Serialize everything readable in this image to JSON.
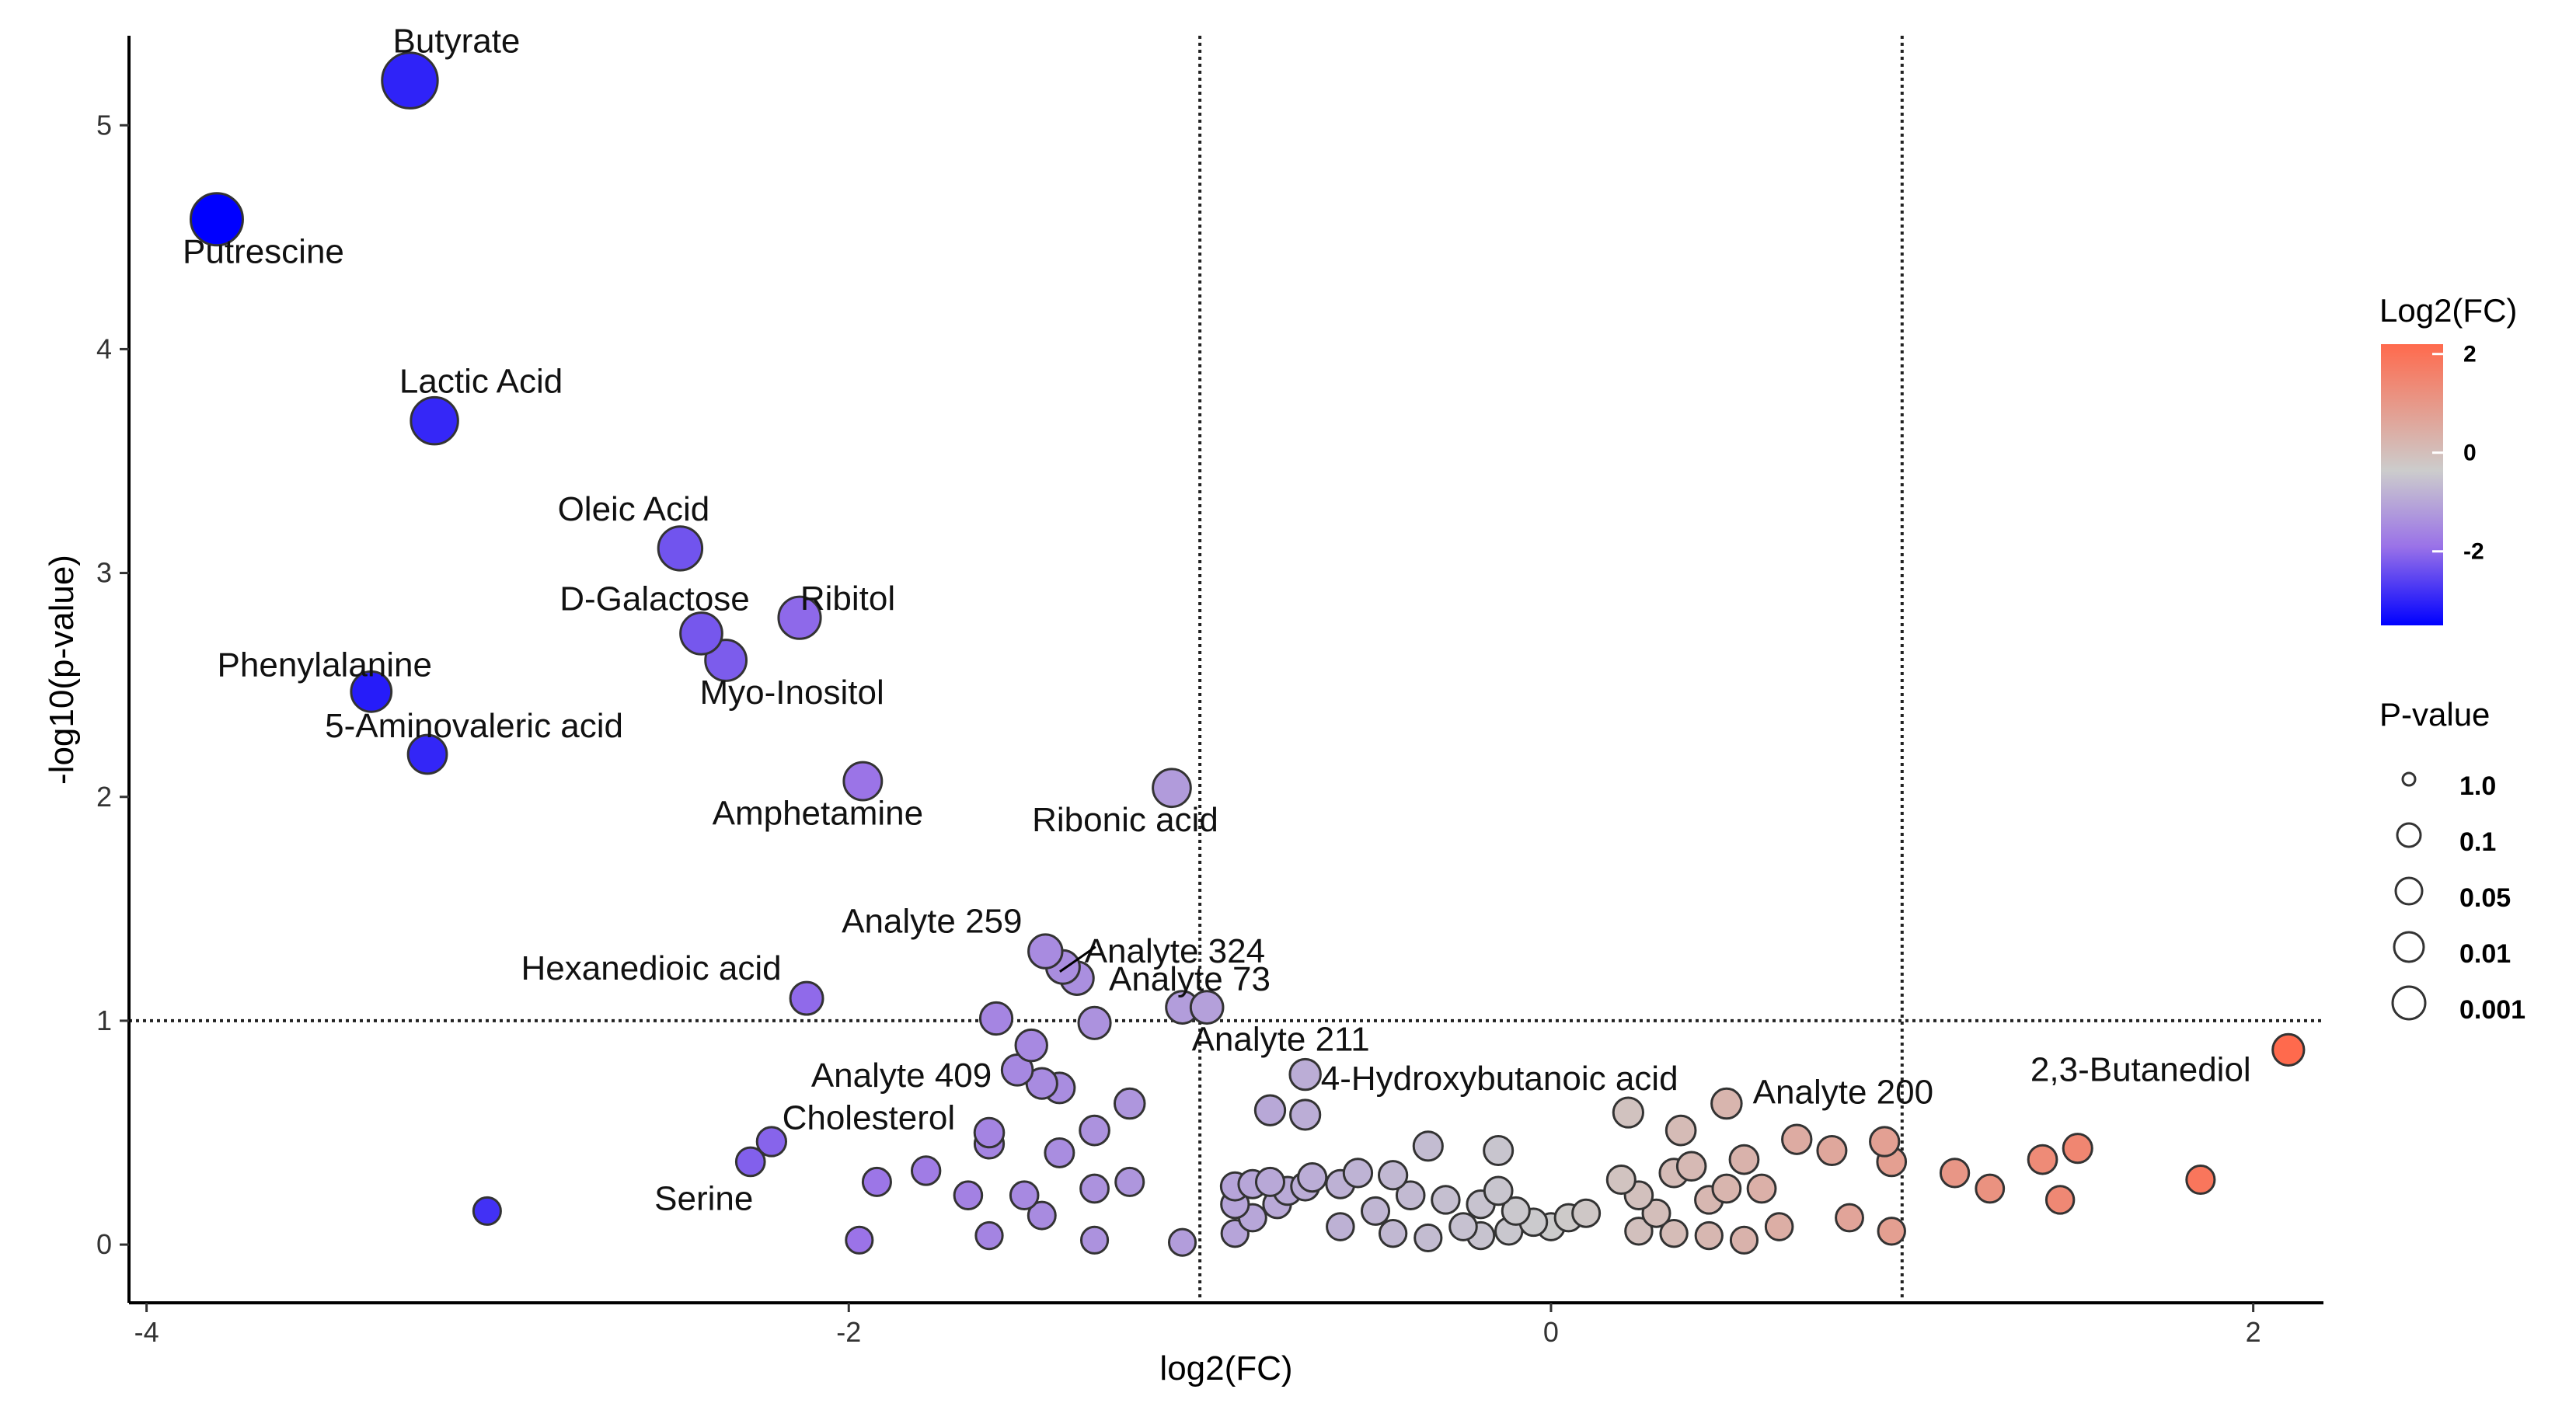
{
  "chart_data": {
    "type": "scatter",
    "title": "",
    "xlabel": "log2(FC)",
    "ylabel": "-log10(p-value)",
    "xlim": [
      -4.05,
      2.2
    ],
    "ylim": [
      -0.26,
      5.4
    ],
    "xticks": [
      -4,
      -2,
      0,
      2
    ],
    "xtick_labels": [
      "-4",
      "-2",
      "0",
      "2"
    ],
    "yticks": [
      0,
      1,
      2,
      3,
      4,
      5
    ],
    "ytick_labels": [
      "0",
      "1",
      "2",
      "3",
      "4",
      "5"
    ],
    "threshold_lines": {
      "vertical": [
        -1,
        1
      ],
      "horizontal": [
        1
      ]
    },
    "grid": false,
    "color_scale": {
      "title": "Log2(FC)",
      "ticks": [
        2,
        0,
        -2
      ],
      "tick_labels": [
        "2",
        "0",
        "-2"
      ],
      "range": [
        -3.5,
        2.2
      ],
      "colors": {
        "low": "#0000ff",
        "mid": "#cccccc",
        "high": "#ff6a4d"
      }
    },
    "size_legend": {
      "title": "P-value",
      "entries": [
        "1.0",
        "0.1",
        "0.05",
        "0.01",
        "0.001"
      ]
    },
    "labeled_points": [
      {
        "label": "Butyrate",
        "x": -3.25,
        "y": 5.2
      },
      {
        "label": "Putrescine",
        "x": -3.8,
        "y": 4.58
      },
      {
        "label": "Lactic Acid",
        "x": -3.18,
        "y": 3.68
      },
      {
        "label": "Oleic Acid",
        "x": -2.48,
        "y": 3.11
      },
      {
        "label": "D-Galactose",
        "x": -2.42,
        "y": 2.73
      },
      {
        "label": "Ribitol",
        "x": -2.14,
        "y": 2.8
      },
      {
        "label": "Myo-Inositol",
        "x": -2.35,
        "y": 2.61
      },
      {
        "label": "Phenylalanine",
        "x": -3.36,
        "y": 2.47
      },
      {
        "label": "5-Aminovaleric acid",
        "x": -3.2,
        "y": 2.19
      },
      {
        "label": "Amphetamine",
        "x": -1.96,
        "y": 2.07
      },
      {
        "label": "Ribonic acid",
        "x": -1.08,
        "y": 2.04
      },
      {
        "label": "Analyte 259",
        "x": -1.44,
        "y": 1.31
      },
      {
        "label": "Analyte 324",
        "x": -1.39,
        "y": 1.24
      },
      {
        "label": "Analyte 73",
        "x": -1.35,
        "y": 1.19
      },
      {
        "label": "Hexanedioic acid",
        "x": -2.12,
        "y": 1.1
      },
      {
        "label": "Analyte 409",
        "x": -1.58,
        "y": 1.01
      },
      {
        "label": "Analyte 211",
        "x": -0.98,
        "y": 1.06
      },
      {
        "label": "4-Hydroxybutanoic acid",
        "x": -0.7,
        "y": 0.76
      },
      {
        "label": "Analyte 200",
        "x": 0.5,
        "y": 0.63
      },
      {
        "label": "2,3-Butanediol",
        "x": 2.1,
        "y": 0.87
      },
      {
        "label": "Cholesterol",
        "x": -2.22,
        "y": 0.46
      },
      {
        "label": "Serine",
        "x": -2.28,
        "y": 0.37
      }
    ],
    "points": [
      {
        "x": -3.03,
        "y": 0.15
      },
      {
        "x": -1.92,
        "y": 0.28
      },
      {
        "x": -1.78,
        "y": 0.33
      },
      {
        "x": -1.66,
        "y": 0.22
      },
      {
        "x": -1.6,
        "y": 0.45
      },
      {
        "x": -1.6,
        "y": 0.5
      },
      {
        "x": -1.5,
        "y": 0.22
      },
      {
        "x": -1.45,
        "y": 0.13
      },
      {
        "x": -1.4,
        "y": 0.41
      },
      {
        "x": -1.3,
        "y": 0.51
      },
      {
        "x": -1.3,
        "y": 0.25
      },
      {
        "x": -1.2,
        "y": 0.28
      },
      {
        "x": -1.2,
        "y": 0.63
      },
      {
        "x": -1.48,
        "y": 0.89
      },
      {
        "x": -1.52,
        "y": 0.78
      },
      {
        "x": -1.45,
        "y": 0.72
      },
      {
        "x": -1.4,
        "y": 0.7
      },
      {
        "x": -1.3,
        "y": 0.99
      },
      {
        "x": -1.05,
        "y": 1.06
      },
      {
        "x": -1.97,
        "y": 0.02
      },
      {
        "x": -1.6,
        "y": 0.04
      },
      {
        "x": -1.3,
        "y": 0.02
      },
      {
        "x": -1.05,
        "y": 0.01
      },
      {
        "x": -0.8,
        "y": 0.6
      },
      {
        "x": -0.7,
        "y": 0.58
      },
      {
        "x": -0.9,
        "y": 0.26
      },
      {
        "x": -0.85,
        "y": 0.27
      },
      {
        "x": -0.8,
        "y": 0.28
      },
      {
        "x": -0.75,
        "y": 0.24
      },
      {
        "x": -0.7,
        "y": 0.26
      },
      {
        "x": -0.68,
        "y": 0.3
      },
      {
        "x": -0.6,
        "y": 0.27
      },
      {
        "x": -0.55,
        "y": 0.32
      },
      {
        "x": -0.45,
        "y": 0.31
      },
      {
        "x": -0.35,
        "y": 0.44
      },
      {
        "x": -0.15,
        "y": 0.42
      },
      {
        "x": -0.4,
        "y": 0.22
      },
      {
        "x": -0.3,
        "y": 0.2
      },
      {
        "x": -0.2,
        "y": 0.18
      },
      {
        "x": -0.15,
        "y": 0.24
      },
      {
        "x": -0.1,
        "y": 0.15
      },
      {
        "x": -0.5,
        "y": 0.15
      },
      {
        "x": -0.6,
        "y": 0.08
      },
      {
        "x": -0.45,
        "y": 0.05
      },
      {
        "x": -0.35,
        "y": 0.03
      },
      {
        "x": -0.25,
        "y": 0.08
      },
      {
        "x": -0.2,
        "y": 0.04
      },
      {
        "x": -0.12,
        "y": 0.06
      },
      {
        "x": -0.05,
        "y": 0.1
      },
      {
        "x": 0.0,
        "y": 0.08
      },
      {
        "x": 0.05,
        "y": 0.12
      },
      {
        "x": 0.1,
        "y": 0.14
      },
      {
        "x": -0.9,
        "y": 0.05
      },
      {
        "x": -0.85,
        "y": 0.12
      },
      {
        "x": -0.78,
        "y": 0.18
      },
      {
        "x": -0.9,
        "y": 0.18
      },
      {
        "x": 0.2,
        "y": 0.29
      },
      {
        "x": 0.25,
        "y": 0.22
      },
      {
        "x": 0.3,
        "y": 0.14
      },
      {
        "x": 0.35,
        "y": 0.32
      },
      {
        "x": 0.4,
        "y": 0.35
      },
      {
        "x": 0.45,
        "y": 0.2
      },
      {
        "x": 0.5,
        "y": 0.25
      },
      {
        "x": 0.55,
        "y": 0.38
      },
      {
        "x": 0.22,
        "y": 0.59
      },
      {
        "x": 0.37,
        "y": 0.51
      },
      {
        "x": 0.25,
        "y": 0.06
      },
      {
        "x": 0.35,
        "y": 0.05
      },
      {
        "x": 0.45,
        "y": 0.04
      },
      {
        "x": 0.55,
        "y": 0.02
      },
      {
        "x": 0.6,
        "y": 0.25
      },
      {
        "x": 0.65,
        "y": 0.08
      },
      {
        "x": 0.7,
        "y": 0.47
      },
      {
        "x": 0.8,
        "y": 0.42
      },
      {
        "x": 0.85,
        "y": 0.12
      },
      {
        "x": 0.95,
        "y": 0.46
      },
      {
        "x": 0.97,
        "y": 0.37
      },
      {
        "x": 0.97,
        "y": 0.06
      },
      {
        "x": 1.15,
        "y": 0.32
      },
      {
        "x": 1.25,
        "y": 0.25
      },
      {
        "x": 1.4,
        "y": 0.38
      },
      {
        "x": 1.45,
        "y": 0.2
      },
      {
        "x": 1.5,
        "y": 0.43
      },
      {
        "x": 1.85,
        "y": 0.29
      }
    ]
  }
}
